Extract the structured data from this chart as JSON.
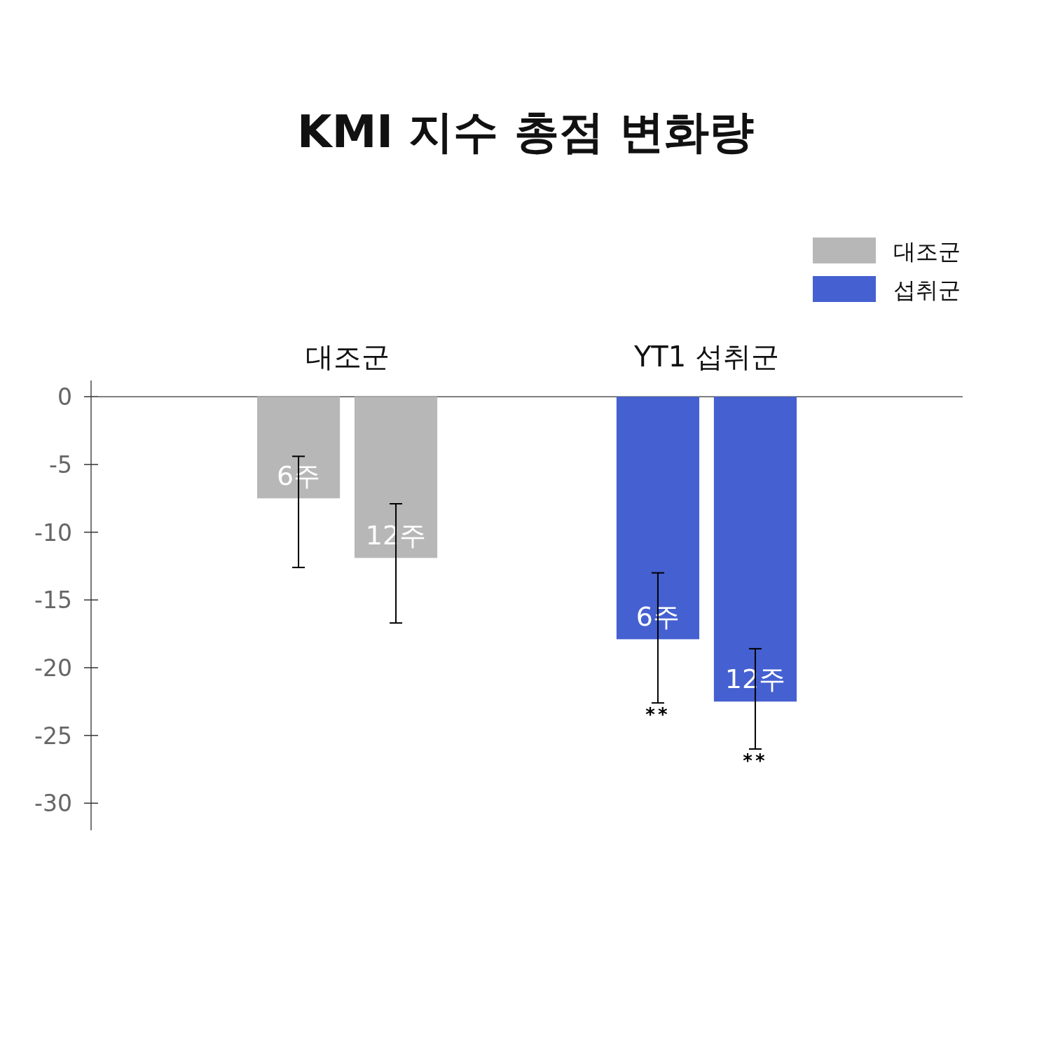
{
  "chart_data": {
    "type": "bar",
    "title": "KMI 지수 총점 변화량",
    "categories": [
      "6주",
      "12주",
      "6주",
      "12주"
    ],
    "series": [
      {
        "name": "대조군",
        "color": "#b7b7b7",
        "values": [
          -7.5,
          -11.9,
          null,
          null
        ],
        "errors": [
          [
            -12.6,
            -4.4
          ],
          [
            -16.7,
            -7.9
          ],
          null,
          null
        ]
      },
      {
        "name": "섭취군",
        "color": "#4560d0",
        "values": [
          null,
          null,
          -17.9,
          -22.5
        ],
        "errors": [
          null,
          null,
          [
            -22.6,
            -13.0
          ],
          [
            -26.0,
            -18.6
          ]
        ]
      }
    ],
    "annotations": [
      "대조군",
      "YT1 섭취군",
      "**",
      "**"
    ],
    "ylim": [
      -32,
      1.2
    ],
    "yticks": [
      0,
      -5,
      -10,
      -15,
      -20,
      -25,
      -30
    ],
    "legend": "top right"
  }
}
